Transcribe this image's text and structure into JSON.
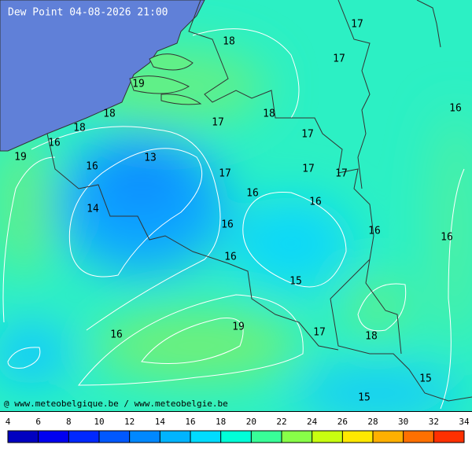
{
  "title": "Dew Point 04-08-2026 21:00",
  "credit": "@ www.meteobelgique.be / www.meteobelgie.be",
  "contour_labels": [
    "17",
    "18",
    "17",
    "19",
    "16",
    "18",
    "17",
    "18",
    "18",
    "17",
    "16",
    "19",
    "13",
    "16",
    "17",
    "17",
    "17",
    "16",
    "16",
    "14",
    "16",
    "16",
    "16",
    "16",
    "15",
    "19",
    "17",
    "16",
    "18",
    "15",
    "15"
  ],
  "colorbar": {
    "ticks": [
      4,
      6,
      8,
      10,
      12,
      14,
      16,
      18,
      20,
      22,
      24,
      26,
      28,
      30,
      32,
      34
    ],
    "colors": [
      "#0000c0",
      "#0000f0",
      "#0028ff",
      "#0058ff",
      "#0088ff",
      "#00b4ff",
      "#00dcff",
      "#00ffd8",
      "#38ff98",
      "#88ff48",
      "#c8ff10",
      "#ffe800",
      "#ffb000",
      "#ff7000",
      "#ff3000"
    ]
  }
}
